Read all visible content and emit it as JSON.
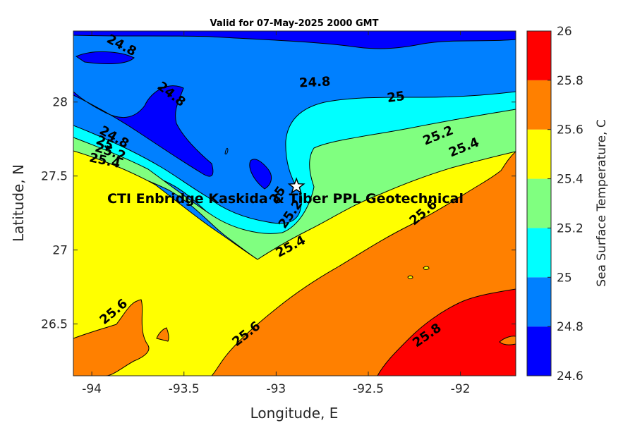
{
  "chart_data": {
    "type": "heatmap",
    "title": "Valid for 07-May-2025 2000 GMT",
    "xlabel": "Longitude, E",
    "ylabel": "Latitude, N",
    "xlim": [
      -94.1,
      -91.7
    ],
    "ylim": [
      26.15,
      28.48
    ],
    "x_ticks": [
      -94,
      -93.5,
      -93,
      -92.5,
      -92
    ],
    "x_tick_labels": [
      "-94",
      "-93.5",
      "-93",
      "-92.5",
      "-92"
    ],
    "y_ticks": [
      26.5,
      27,
      27.5,
      28
    ],
    "y_tick_labels": [
      "26.5",
      "27",
      "27.5",
      "28"
    ],
    "grid": false,
    "colorbar": {
      "label": "Sea Surface Temperature, C",
      "limits": [
        24.6,
        26
      ],
      "ticks": [
        24.6,
        24.8,
        25,
        25.2,
        25.4,
        25.6,
        25.8,
        26
      ],
      "tick_labels": [
        "24.6",
        "24.8",
        "25",
        "25.2",
        "25.4",
        "25.6",
        "25.8",
        "26"
      ],
      "bands": [
        {
          "from": 24.6,
          "to": 24.8,
          "color": "#0000ff"
        },
        {
          "from": 24.8,
          "to": 25.0,
          "color": "#0080ff"
        },
        {
          "from": 25.0,
          "to": 25.2,
          "color": "#00ffff"
        },
        {
          "from": 25.2,
          "to": 25.4,
          "color": "#80ff80"
        },
        {
          "from": 25.4,
          "to": 25.6,
          "color": "#ffff00"
        },
        {
          "from": 25.6,
          "to": 25.8,
          "color": "#ff8000"
        },
        {
          "from": 25.8,
          "to": 26.0,
          "color": "#ff0000"
        }
      ]
    },
    "contour_labels": [
      {
        "text": "24.8",
        "lon": -93.84,
        "lat": 28.38,
        "angle": 28
      },
      {
        "text": "24.8",
        "lon": -93.57,
        "lat": 28.05,
        "angle": 38
      },
      {
        "text": "24.8",
        "lon": -92.79,
        "lat": 28.13,
        "angle": -3
      },
      {
        "text": "25",
        "lon": -92.35,
        "lat": 28.03,
        "angle": -8
      },
      {
        "text": "25.2",
        "lon": -92.12,
        "lat": 27.77,
        "angle": -22
      },
      {
        "text": "25.4",
        "lon": -91.98,
        "lat": 27.69,
        "angle": -22
      },
      {
        "text": "24.8",
        "lon": -93.88,
        "lat": 27.76,
        "angle": 30
      },
      {
        "text": "25",
        "lon": -93.93,
        "lat": 27.72,
        "angle": 25
      },
      {
        "text": "25.2",
        "lon": -93.9,
        "lat": 27.66,
        "angle": 18
      },
      {
        "text": "25.4",
        "lon": -93.93,
        "lat": 27.6,
        "angle": 12
      },
      {
        "text": "25",
        "lon": -92.99,
        "lat": 27.37,
        "angle": -55
      },
      {
        "text": "25.2",
        "lon": -92.92,
        "lat": 27.24,
        "angle": -55
      },
      {
        "text": "25.4",
        "lon": -92.92,
        "lat": 27.02,
        "angle": -28
      },
      {
        "text": "25.6",
        "lon": -93.88,
        "lat": 26.58,
        "angle": -40
      },
      {
        "text": "25.6",
        "lon": -93.16,
        "lat": 26.43,
        "angle": -38
      },
      {
        "text": "25.6",
        "lon": -92.2,
        "lat": 27.25,
        "angle": -40
      },
      {
        "text": "25.8",
        "lon": -92.18,
        "lat": 26.42,
        "angle": -35
      }
    ],
    "site_marker": {
      "lon": -92.89,
      "lat": 27.43,
      "symbol": "star"
    },
    "annotation": {
      "text": "CTI Enbridge  Kaskida & Tiber PPL Geotechnical",
      "lon": -92.9,
      "lat": 27.35
    }
  }
}
